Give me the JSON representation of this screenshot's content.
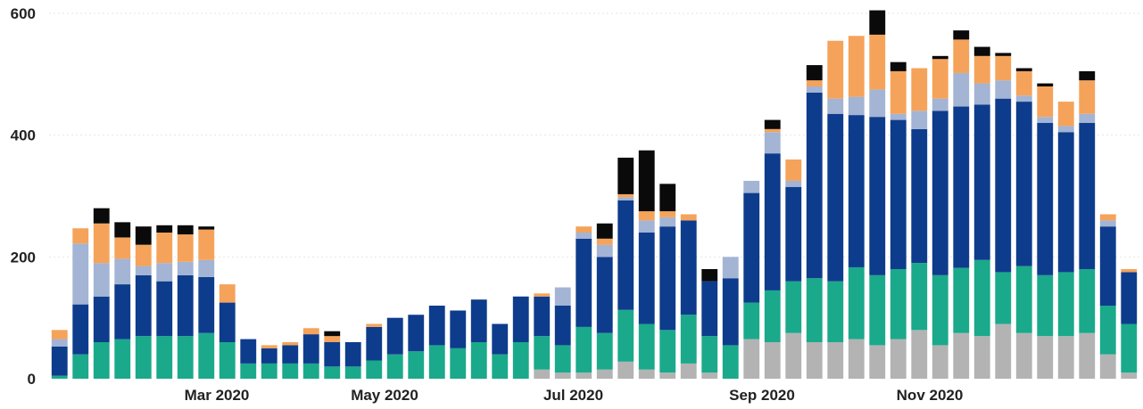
{
  "chart_data": {
    "type": "bar",
    "stacked": true,
    "title": "",
    "xlabel": "",
    "ylabel": "",
    "ylim": [
      0,
      600
    ],
    "y_ticks": [
      "0",
      "200",
      "400",
      "600"
    ],
    "x_tick_labels": [
      {
        "label": "Mar 2020",
        "at_bar": 7.5
      },
      {
        "label": "May 2020",
        "at_bar": 15.5
      },
      {
        "label": "Jul 2020",
        "at_bar": 24.5
      },
      {
        "label": "Sep 2020",
        "at_bar": 33.5
      },
      {
        "label": "Nov 2020",
        "at_bar": 41.5
      }
    ],
    "grid": true,
    "legend": "none",
    "colors": [
      "#b3b3b3",
      "#1aa98b",
      "#0e3c8c",
      "#a3b4d4",
      "#f5a35a",
      "#0a0a0a"
    ],
    "series": [
      {
        "values": [
          0,
          0,
          0,
          0,
          0,
          0,
          0,
          0,
          0,
          0,
          0,
          0,
          0,
          0,
          0,
          0,
          0,
          0,
          0,
          0,
          0,
          0,
          0,
          15,
          10,
          10,
          15,
          28,
          15,
          10,
          25,
          10,
          0,
          65,
          60,
          75,
          60,
          60,
          65,
          55,
          65,
          80,
          55,
          75,
          70,
          90,
          75,
          70,
          70,
          75,
          40,
          10
        ]
      },
      {
        "values": [
          5,
          40,
          60,
          65,
          70,
          70,
          70,
          75,
          60,
          25,
          25,
          25,
          25,
          20,
          20,
          30,
          40,
          45,
          55,
          50,
          60,
          40,
          60,
          55,
          45,
          75,
          60,
          85,
          75,
          70,
          80,
          60,
          55,
          60,
          85,
          85,
          105,
          100,
          118,
          115,
          115,
          110,
          115,
          107,
          125,
          85,
          110,
          100,
          105,
          105,
          80,
          80
        ]
      },
      {
        "values": [
          48,
          82,
          75,
          90,
          100,
          90,
          100,
          92,
          65,
          40,
          25,
          30,
          48,
          40,
          40,
          55,
          60,
          60,
          65,
          62,
          70,
          50,
          75,
          65,
          65,
          145,
          125,
          180,
          150,
          170,
          155,
          90,
          110,
          180,
          225,
          155,
          305,
          275,
          250,
          260,
          245,
          220,
          270,
          265,
          255,
          285,
          270,
          250,
          230,
          240,
          130,
          85
        ]
      },
      {
        "values": [
          12,
          100,
          55,
          42,
          15,
          30,
          22,
          28,
          0,
          0,
          0,
          0,
          0,
          0,
          0,
          0,
          0,
          0,
          0,
          0,
          0,
          0,
          0,
          0,
          30,
          10,
          20,
          5,
          20,
          15,
          0,
          0,
          35,
          20,
          35,
          10,
          10,
          25,
          30,
          45,
          10,
          30,
          20,
          55,
          35,
          30,
          10,
          10,
          10,
          15,
          10,
          0
        ]
      },
      {
        "values": [
          15,
          25,
          65,
          35,
          35,
          50,
          45,
          50,
          30,
          0,
          5,
          5,
          10,
          10,
          0,
          5,
          0,
          0,
          0,
          0,
          0,
          0,
          0,
          5,
          0,
          10,
          10,
          5,
          15,
          10,
          10,
          0,
          0,
          0,
          5,
          35,
          10,
          95,
          100,
          90,
          70,
          70,
          65,
          55,
          45,
          40,
          40,
          50,
          40,
          55,
          10,
          5
        ]
      },
      {
        "values": [
          0,
          0,
          25,
          25,
          30,
          12,
          15,
          5,
          0,
          0,
          0,
          0,
          0,
          8,
          0,
          0,
          0,
          0,
          0,
          0,
          0,
          0,
          0,
          0,
          0,
          0,
          25,
          60,
          100,
          45,
          0,
          20,
          0,
          0,
          15,
          0,
          25,
          0,
          0,
          40,
          15,
          0,
          5,
          15,
          15,
          5,
          5,
          5,
          0,
          15,
          0,
          0
        ]
      }
    ]
  }
}
